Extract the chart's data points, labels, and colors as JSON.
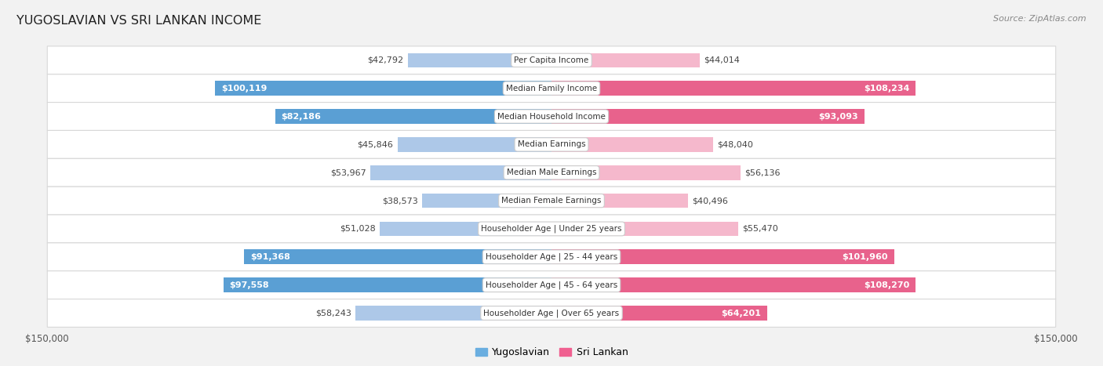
{
  "title": "YUGOSLAVIAN VS SRI LANKAN INCOME",
  "source": "Source: ZipAtlas.com",
  "categories": [
    "Per Capita Income",
    "Median Family Income",
    "Median Household Income",
    "Median Earnings",
    "Median Male Earnings",
    "Median Female Earnings",
    "Householder Age | Under 25 years",
    "Householder Age | 25 - 44 years",
    "Householder Age | 45 - 64 years",
    "Householder Age | Over 65 years"
  ],
  "yugoslavian_values": [
    42792,
    100119,
    82186,
    45846,
    53967,
    38573,
    51028,
    91368,
    97558,
    58243
  ],
  "srilankan_values": [
    44014,
    108234,
    93093,
    48040,
    56136,
    40496,
    55470,
    101960,
    108270,
    64201
  ],
  "yugoslavian_labels": [
    "$42,792",
    "$100,119",
    "$82,186",
    "$45,846",
    "$53,967",
    "$38,573",
    "$51,028",
    "$91,368",
    "$97,558",
    "$58,243"
  ],
  "srilankan_labels": [
    "$44,014",
    "$108,234",
    "$93,093",
    "$48,040",
    "$56,136",
    "$40,496",
    "$55,470",
    "$101,960",
    "$108,270",
    "$64,201"
  ],
  "yug_color_light": "#adc8e8",
  "yug_color_dark": "#5a9fd4",
  "sri_color_light": "#f5b8cc",
  "sri_color_dark": "#e8628c",
  "yug_legend_color": "#6aaee0",
  "sri_legend_color": "#f06090",
  "max_value": 150000,
  "background_color": "#f2f2f2",
  "row_bg_color": "#ffffff",
  "row_border_color": "#d8d8d8",
  "bar_height": 0.52,
  "title_fontsize": 11.5,
  "source_fontsize": 8,
  "label_fontsize": 8,
  "category_fontsize": 7.5,
  "large_threshold": 60000
}
